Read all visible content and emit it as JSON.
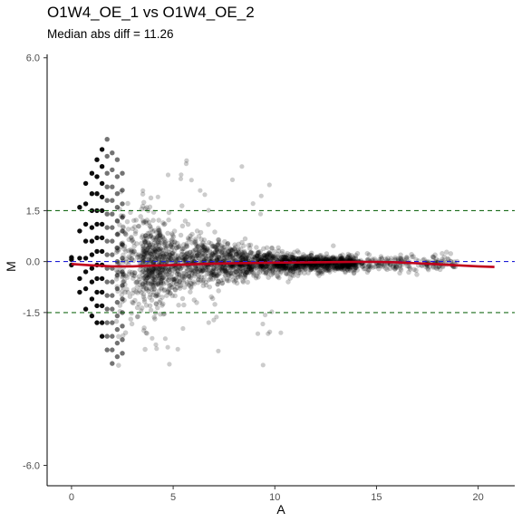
{
  "chart_data": {
    "type": "scatter",
    "title": "O1W4_OE_1 vs O1W4_OE_2",
    "subtitle": "Median abs diff = 11.26",
    "xlabel": "A",
    "ylabel": "M",
    "xlim": [
      -1.2,
      21.8
    ],
    "ylim": [
      -6.6,
      6.1
    ],
    "x_ticks": [
      0,
      5,
      10,
      15,
      20
    ],
    "y_ticks": [
      6.0,
      1.5,
      0.0,
      -1.5,
      -6.0
    ],
    "y_tick_labels": [
      "6.0",
      "1.5",
      "0.0",
      "-1.5",
      "-6.0"
    ],
    "grid": false,
    "point_color": "#000000",
    "point_opacity": 0.2,
    "reference_lines": [
      {
        "y": 0,
        "color": "#1f1fd6",
        "style": "dashed"
      },
      {
        "y": 1.5,
        "color": "#1a6b1a",
        "style": "dashed"
      },
      {
        "y": -1.5,
        "color": "#1a6b1a",
        "style": "dashed"
      }
    ],
    "loess_color": "#c0001a",
    "loess": {
      "x": [
        0.0,
        1.0,
        2.0,
        3.0,
        4.0,
        5.0,
        6.0,
        8.0,
        10.0,
        12.0,
        14.0,
        15.0,
        16.0,
        17.0,
        18.0,
        19.0,
        20.0,
        20.8
      ],
      "y": [
        -0.07,
        -0.11,
        -0.14,
        -0.14,
        -0.12,
        -0.1,
        -0.08,
        -0.05,
        -0.03,
        -0.02,
        -0.01,
        -0.01,
        -0.02,
        -0.05,
        -0.08,
        -0.11,
        -0.14,
        -0.16
      ]
    },
    "low_count_columns": [
      {
        "x": 0.0,
        "y": [
          0.12,
          0.06,
          -0.1
        ]
      },
      {
        "x": 0.4,
        "y": [
          1.6,
          0.9,
          0.1,
          -0.5,
          -0.9
        ]
      },
      {
        "x": 0.7,
        "y": [
          2.3,
          1.7,
          1.1,
          0.6,
          0.1,
          -0.3,
          -0.8,
          -1.4
        ]
      },
      {
        "x": 1.0,
        "y": [
          2.6,
          2.0,
          1.5,
          1.0,
          0.6,
          0.2,
          -0.2,
          -0.6,
          -1.1,
          -1.6
        ]
      },
      {
        "x": 1.25,
        "y": [
          3.0,
          2.5,
          2.0,
          1.5,
          1.1,
          0.7,
          0.3,
          -0.1,
          -0.5,
          -0.9,
          -1.3,
          -1.8
        ]
      },
      {
        "x": 1.5,
        "y": [
          3.3,
          2.8,
          2.3,
          1.9,
          1.5,
          1.1,
          0.7,
          0.3,
          -0.1,
          -0.5,
          -0.9,
          -1.3,
          -1.8,
          -2.2
        ]
      },
      {
        "x": 1.75,
        "y": [
          3.6,
          3.1,
          2.6,
          2.2,
          1.8,
          1.4,
          1.0,
          0.6,
          0.2,
          -0.2,
          -0.6,
          -1.0,
          -1.4,
          -1.8,
          -2.2,
          -2.6
        ]
      },
      {
        "x": 2.0,
        "y": [
          3.2,
          2.7,
          2.2,
          1.8,
          1.4,
          1.0,
          0.6,
          0.2,
          -0.2,
          -0.6,
          -1.0,
          -1.4,
          -1.8,
          -2.2,
          -2.6,
          -3.0
        ]
      },
      {
        "x": 2.25,
        "y": [
          3.0,
          2.5,
          2.0,
          1.6,
          1.2,
          0.8,
          0.4,
          0.0,
          -0.4,
          -0.8,
          -1.2,
          -1.6,
          -2.0,
          -2.4,
          -2.8
        ]
      },
      {
        "x": 2.5,
        "y": [
          2.6,
          2.1,
          1.7,
          1.3,
          0.9,
          0.5,
          0.1,
          -0.3,
          -0.7,
          -1.1,
          -1.5,
          -1.9,
          -2.3,
          -2.7
        ]
      }
    ]
  }
}
